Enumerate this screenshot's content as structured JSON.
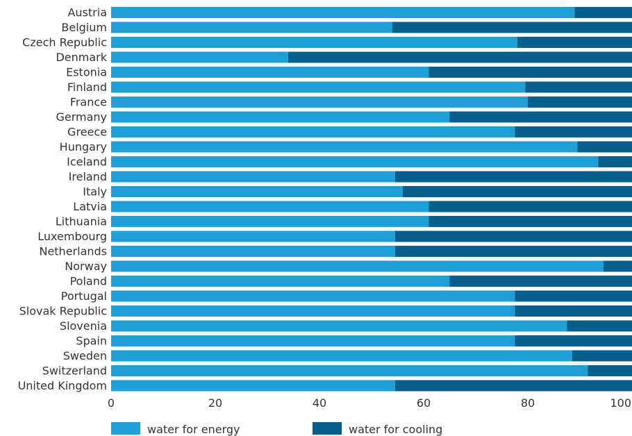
{
  "colors": {
    "energy": "#1ea0d7",
    "cooling": "#065f8b",
    "text": "#333333"
  },
  "chart_data": {
    "type": "bar",
    "orientation": "horizontal",
    "stacked": true,
    "categories": [
      "Austria",
      "Belgium",
      "Czech Republic",
      "Denmark",
      "Estonia",
      "Finland",
      "France",
      "Germany",
      "Greece",
      "Hungary",
      "Iceland",
      "Ireland",
      "Italy",
      "Latvia",
      "Lithuania",
      "Luxembourg",
      "Netherlands",
      "Norway",
      "Poland",
      "Portugal",
      "Slovak Republic",
      "Slovenia",
      "Spain",
      "Sweden",
      "Switzerland",
      "United Kingdom"
    ],
    "series": [
      {
        "name": "water for energy",
        "color": "#1ea0d7",
        "values": [
          89,
          54,
          78,
          34,
          61,
          79.5,
          80,
          65,
          77.5,
          89.5,
          93.5,
          54.5,
          56,
          61,
          61,
          54.5,
          54.5,
          94.5,
          65,
          77.5,
          77.5,
          87.5,
          77.5,
          88.5,
          91.5,
          54.5
        ]
      },
      {
        "name": "water for cooling",
        "color": "#065f8b",
        "values": [
          11,
          46,
          22,
          66,
          39,
          20.5,
          20,
          35,
          22.5,
          10.5,
          6.5,
          45.5,
          44,
          39,
          39,
          45.5,
          45.5,
          5.5,
          35,
          22.5,
          22.5,
          12.5,
          22.5,
          11.5,
          8.5,
          45.5
        ]
      }
    ],
    "xlim": [
      0,
      100
    ],
    "xticks": [
      "0",
      "20",
      "40",
      "60",
      "80",
      "100"
    ],
    "grid": false,
    "legend": "bottom"
  }
}
